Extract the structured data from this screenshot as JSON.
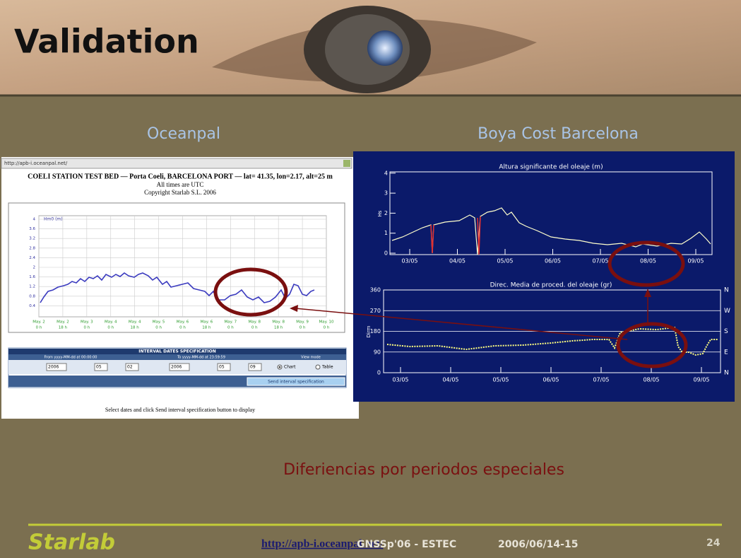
{
  "header": {
    "title": "Validation"
  },
  "columns": [
    "Oceanpal",
    "Boya Cost Barcelona"
  ],
  "left_screenshot": {
    "url": "http://apb-i.oceanpal.net/",
    "title": "COELI STATION TEST BED — Porta Coeli, BARCELONA PORT — lat= 41.35, lon=2.17, alt=25 m",
    "note": "All times are UTC",
    "copyright": "Copyright Starlab S.L. 2006",
    "y_label": "Hm0 (m)",
    "y_ticks": [
      "4",
      "3.6",
      "3.2",
      "2.8",
      "2.4",
      "2",
      "1.6",
      "1.2",
      "0.8",
      "0.4"
    ],
    "x_days": [
      "May. 2",
      "May. 2",
      "May. 3",
      "May. 4",
      "May. 4",
      "May. 5",
      "May. 6",
      "May. 6",
      "May. 7",
      "May. 8",
      "May. 8",
      "May. 9",
      "May. 10"
    ],
    "x_hours": [
      "0 h",
      "18 h",
      "0 h",
      "0 h",
      "18 h",
      "0 h",
      "0 h",
      "18 h",
      "0 h",
      "0 h",
      "18 h",
      "0 h",
      "0 h"
    ],
    "form": {
      "title": "INTERVAL DATES SPECIFICATION",
      "from_label": "From yyyy-MM-dd at 00:00:00",
      "to_label": "To yyyy-MM-dd at 23:59:59",
      "mode_label": "View mode",
      "from": [
        "2006",
        "05",
        "02"
      ],
      "to": [
        "2006",
        "05",
        "09"
      ],
      "chart": "Chart",
      "table": "Table",
      "button": "Send interval specification"
    },
    "footer": "Select dates and click Send interval specification button to display"
  },
  "right_screenshot": {
    "top": {
      "title": "Altura significante del oleaje (m)",
      "y_label": "Hs",
      "y_ticks": [
        "0",
        "1",
        "2",
        "3",
        "4"
      ],
      "x_ticks": [
        "03/05",
        "04/05",
        "05/05",
        "06/05",
        "07/05",
        "08/05",
        "09/05"
      ]
    },
    "bottom": {
      "title": "Direc. Media de proced. del oleaje (gr)",
      "y_label": "Dirm",
      "y_ticks": [
        "0",
        "90",
        "180",
        "270",
        "360"
      ],
      "compass": [
        "N",
        "E",
        "S",
        "W",
        "N"
      ],
      "x_ticks": [
        "03/05",
        "04/05",
        "05/05",
        "06/05",
        "07/05",
        "08/05",
        "09/05"
      ]
    }
  },
  "caption": "Diferiencias por periodos especiales",
  "footer": {
    "logo": "Starlab",
    "link": "http://apb-i.oceanpal.net/",
    "event": "GNSSp'06 - ESTEC",
    "date": "2006/06/14-15",
    "page": "24"
  }
}
